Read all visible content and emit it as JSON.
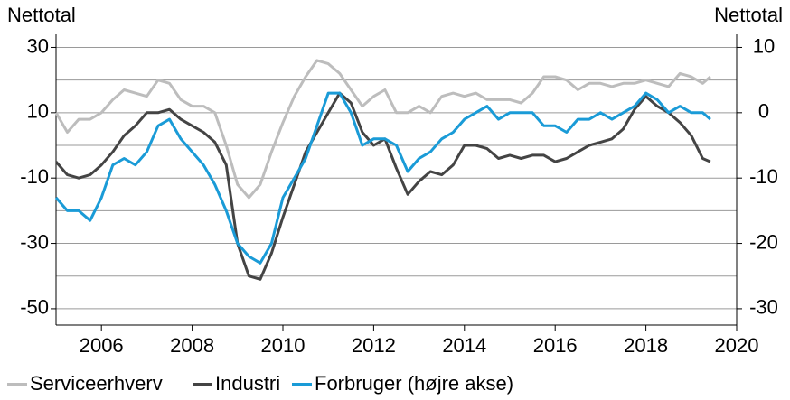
{
  "chart_data": {
    "type": "line",
    "y_label": "Nettotal",
    "y2_label": "Nettotal",
    "x": [
      2005.0,
      2005.25,
      2005.5,
      2005.75,
      2006.0,
      2006.25,
      2006.5,
      2006.75,
      2007.0,
      2007.25,
      2007.5,
      2007.75,
      2008.0,
      2008.25,
      2008.5,
      2008.75,
      2009.0,
      2009.25,
      2009.5,
      2009.75,
      2010.0,
      2010.25,
      2010.5,
      2010.75,
      2011.0,
      2011.25,
      2011.5,
      2011.75,
      2012.0,
      2012.25,
      2012.5,
      2012.75,
      2013.0,
      2013.25,
      2013.5,
      2013.75,
      2014.0,
      2014.25,
      2014.5,
      2014.75,
      2015.0,
      2015.25,
      2015.5,
      2015.75,
      2016.0,
      2016.25,
      2016.5,
      2016.75,
      2017.0,
      2017.25,
      2017.5,
      2017.75,
      2018.0,
      2018.25,
      2018.5,
      2018.75,
      2019.0,
      2019.25,
      2019.42
    ],
    "series": [
      {
        "name": "Serviceerhverv",
        "color": "#bdbdbd",
        "values": [
          10,
          4,
          8,
          8,
          10,
          14,
          17,
          16,
          15,
          20,
          19,
          14,
          12,
          12,
          10,
          0,
          -12,
          -16,
          -12,
          -2,
          7,
          15,
          21,
          26,
          25,
          22,
          17,
          12,
          15,
          17,
          10,
          10,
          12,
          10,
          15,
          16,
          15,
          16,
          14,
          14,
          14,
          13,
          16,
          21,
          21,
          20,
          17,
          19,
          19,
          18,
          19,
          19,
          20,
          19,
          18,
          22,
          21,
          19,
          21
        ]
      },
      {
        "name": "Industri",
        "color": "#444444",
        "values": [
          -5,
          -9,
          -10,
          -9,
          -6,
          -2,
          3,
          6,
          10,
          10,
          11,
          8,
          6,
          4,
          1,
          -6,
          -30,
          -40,
          -41,
          -33,
          -22,
          -12,
          -2,
          4,
          10,
          16,
          13,
          4,
          0,
          2,
          -7,
          -15,
          -11,
          -8,
          -9,
          -6,
          0,
          0,
          -1,
          -4,
          -3,
          -4,
          -3,
          -3,
          -5,
          -4,
          -2,
          0,
          1,
          2,
          5,
          11,
          15,
          12,
          10,
          7,
          3,
          -4,
          -5
        ]
      },
      {
        "name": "Forbruger (højre akse)",
        "color": "#1a9bd7",
        "axis": "y2",
        "values": [
          -13,
          -15,
          -15,
          -16.5,
          -13,
          -8,
          -7,
          -8,
          -6,
          -2,
          -1,
          -4,
          -6,
          -8,
          -11,
          -15,
          -20,
          -22,
          -23,
          -20,
          -13,
          -10,
          -7,
          -2,
          3,
          3,
          0,
          -5,
          -4,
          -4,
          -5,
          -9,
          -7,
          -6,
          -4,
          -3,
          -1,
          0,
          1,
          -1,
          0,
          0,
          0,
          -2,
          -2,
          -3,
          -1,
          -1,
          0,
          -1,
          0,
          1,
          3,
          2,
          0,
          1,
          0,
          0,
          -1
        ]
      }
    ],
    "xlim": [
      2005,
      2020
    ],
    "xticks": [
      2006,
      2008,
      2010,
      2012,
      2014,
      2016,
      2018,
      2020
    ],
    "ylim": [
      -55,
      34
    ],
    "yticks": [
      30,
      10,
      -10,
      -30,
      -50
    ],
    "minor_yticks": [
      20,
      0,
      -20,
      -40
    ],
    "y2lim": [
      -32.5,
      12
    ],
    "y2ticks": [
      10,
      0,
      -10,
      -20,
      -30
    ],
    "grid": true,
    "legend": "bottom"
  }
}
